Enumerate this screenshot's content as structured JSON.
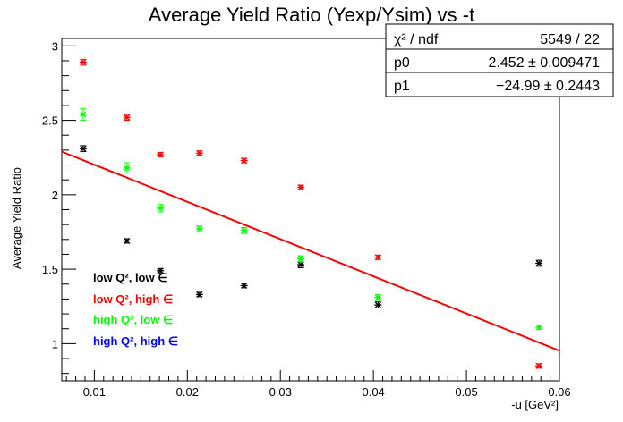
{
  "chart_data": {
    "type": "scatter",
    "title": "Average Yield Ratio (Yexp/Ysim) vs -t",
    "xlabel": "-u [GeV²]",
    "ylabel": "Average Yield Ratio",
    "xlim": [
      0.0065,
      0.06
    ],
    "ylim": [
      0.75,
      3.05
    ],
    "x_ticks": [
      0.01,
      0.02,
      0.03,
      0.04,
      0.05,
      0.06
    ],
    "y_ticks": [
      1,
      1.5,
      2,
      2.5,
      3
    ],
    "x_tick_labels": [
      "0.01",
      "0.02",
      "0.03",
      "0.04",
      "0.05",
      "0.06"
    ],
    "y_tick_labels": [
      "1",
      "1.5",
      "2",
      "2.5",
      "3"
    ],
    "grid": false,
    "legend_position": "bottom-left",
    "series": [
      {
        "name": "low Q², low ∈",
        "color": "#000000",
        "x": [
          0.0088,
          0.0135,
          0.0171,
          0.0213,
          0.0261,
          0.0322,
          0.0405,
          0.0578
        ],
        "y": [
          2.31,
          1.69,
          1.49,
          1.33,
          1.39,
          1.53,
          1.26,
          1.54
        ],
        "err": [
          0.02,
          0.015,
          0.015,
          0.015,
          0.015,
          0.02,
          0.02,
          0.02
        ]
      },
      {
        "name": "low Q², high ∈",
        "color": "#ff0000",
        "x": [
          0.0088,
          0.0135,
          0.0171,
          0.0213,
          0.0261,
          0.0322,
          0.0405,
          0.0578
        ],
        "y": [
          2.89,
          2.52,
          2.27,
          2.28,
          2.23,
          2.05,
          1.58,
          0.85
        ],
        "err": [
          0.02,
          0.02,
          0.015,
          0.015,
          0.015,
          0.015,
          0.015,
          0.015
        ]
      },
      {
        "name": "high Q², low ∈",
        "color": "#00ff00",
        "x": [
          0.0088,
          0.0135,
          0.0171,
          0.0213,
          0.0261,
          0.0322,
          0.0405,
          0.0578
        ],
        "y": [
          2.54,
          2.18,
          1.91,
          1.77,
          1.76,
          1.57,
          1.31,
          1.11
        ],
        "err": [
          0.04,
          0.035,
          0.025,
          0.02,
          0.02,
          0.02,
          0.02,
          0.015
        ]
      },
      {
        "name": "high Q², high ∈",
        "color": "#0000ff",
        "x": [],
        "y": [],
        "err": []
      }
    ],
    "fit": {
      "color": "#ff0000",
      "p0_value": 2.452,
      "p1_value": -24.99
    },
    "stats_box": {
      "rows": [
        {
          "label": "χ² / ndf",
          "value": "5549 / 22"
        },
        {
          "label": "p0",
          "value": "2.452 ± 0.009471"
        },
        {
          "label": "p1",
          "value": "−24.99 ± 0.2443"
        }
      ]
    }
  }
}
